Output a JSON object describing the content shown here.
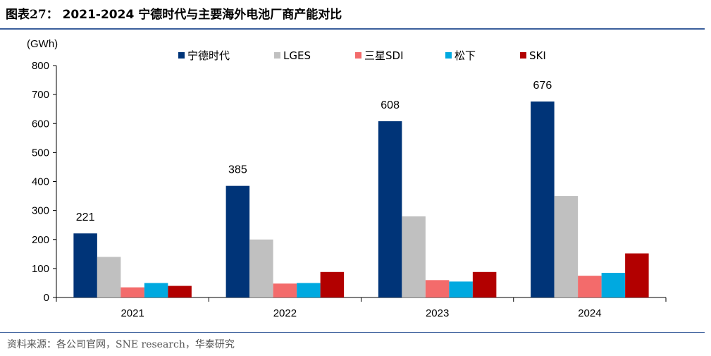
{
  "header": {
    "figure_label": "图表27：",
    "title": "2021-2024 宁德时代与主要海外电池厂商产能对比"
  },
  "footer": {
    "source": "资料来源：各公司官网，SNE research，华泰研究"
  },
  "chart_data": {
    "type": "bar",
    "unit_label": "(GWh)",
    "categories": [
      "2021",
      "2022",
      "2023",
      "2024"
    ],
    "ylim": [
      0,
      800
    ],
    "yticks": [
      0,
      100,
      200,
      300,
      400,
      500,
      600,
      700,
      800
    ],
    "grid": false,
    "legend_position": "top",
    "series": [
      {
        "name": "宁德时代",
        "color": "#003478",
        "values": [
          221,
          385,
          608,
          676
        ],
        "data_labels": [
          "221",
          "385",
          "608",
          "676"
        ]
      },
      {
        "name": "LGES",
        "color": "#c0c0c0",
        "values": [
          140,
          200,
          280,
          350
        ]
      },
      {
        "name": "三星SDI",
        "color": "#f36b6b",
        "values": [
          35,
          48,
          60,
          75
        ]
      },
      {
        "name": "松下",
        "color": "#00a9e0",
        "values": [
          50,
          50,
          55,
          85
        ]
      },
      {
        "name": "SKI",
        "color": "#b20000",
        "values": [
          40,
          88,
          88,
          152
        ]
      }
    ]
  }
}
